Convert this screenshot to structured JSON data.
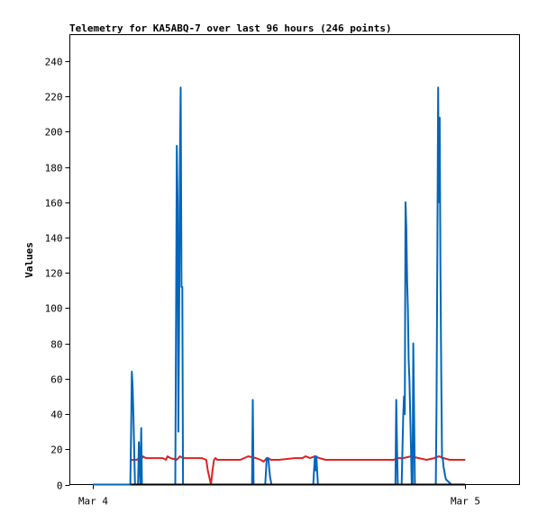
{
  "chart_data": {
    "type": "line",
    "title": "Telemetry for KA5ABQ-7 over last 96 hours (246 points)",
    "xlabel": "",
    "ylabel": "Values",
    "ylim": [
      0,
      255
    ],
    "yticks": [
      0,
      20,
      40,
      60,
      80,
      100,
      120,
      140,
      160,
      180,
      200,
      220,
      240
    ],
    "xlim": [
      -1.5,
      27.5
    ],
    "x_unit": "hours from Mar 4 00:00",
    "xticks": [
      {
        "x": 0,
        "label": "Mar 4"
      },
      {
        "x": 24,
        "label": "Mar 5"
      }
    ],
    "grid": false,
    "legend": "none",
    "series": [
      {
        "color": "#0066bb",
        "x": [
          0,
          2.4,
          2.45,
          2.5,
          2.55,
          2.6,
          2.65,
          2.7,
          2.75,
          2.8,
          2.85,
          2.9,
          2.95,
          3.05,
          3.1,
          3.15,
          3.2,
          3.25,
          3.3,
          5.3,
          5.35,
          5.4,
          5.45,
          5.5,
          5.55,
          5.6,
          5.65,
          5.7,
          5.75,
          5.8,
          5.85,
          5.9,
          5.95,
          10.25,
          10.3,
          10.35,
          11.1,
          11.2,
          11.3,
          11.4,
          11.5,
          14.2,
          14.25,
          14.3,
          14.35,
          14.4,
          14.45,
          14.5,
          19.5,
          19.55,
          19.6,
          19.65,
          19.9,
          20.0,
          20.05,
          20.1,
          20.15,
          20.2,
          20.25,
          20.3,
          20.35,
          20.4,
          20.45,
          20.5,
          20.55,
          20.6,
          20.65,
          20.7,
          20.75,
          20.8,
          20.85,
          20.9,
          20.95,
          21.0,
          22.1,
          22.15,
          22.2,
          22.25,
          22.3,
          22.35,
          22.4,
          22.45,
          22.5,
          22.55,
          22.6,
          22.65,
          22.7,
          22.75,
          23.1,
          23.5,
          24.0
        ],
        "values": [
          0,
          0,
          30,
          64,
          55,
          40,
          20,
          0,
          0,
          0,
          0,
          0,
          24,
          0,
          32,
          0,
          0,
          0,
          0,
          0,
          97,
          192,
          160,
          30,
          97,
          187,
          225,
          112,
          112,
          0,
          0,
          0,
          0,
          0,
          48,
          0,
          0,
          15,
          15,
          5,
          0,
          0,
          8,
          16,
          8,
          16,
          8,
          0,
          0,
          48,
          20,
          0,
          0,
          38,
          50,
          40,
          160,
          145,
          115,
          100,
          70,
          60,
          40,
          20,
          0,
          0,
          80,
          40,
          0,
          0,
          0,
          0,
          0,
          0,
          0,
          45,
          130,
          225,
          160,
          208,
          125,
          65,
          15,
          15,
          10,
          8,
          5,
          3,
          0,
          0,
          0
        ]
      },
      {
        "color": "#dd2222",
        "x": [
          2.4,
          2.8,
          3.0,
          3.1,
          3.2,
          3.4,
          4.5,
          4.7,
          4.8,
          5.0,
          5.4,
          5.6,
          5.8,
          6.2,
          7.0,
          7.3,
          7.4,
          7.6,
          7.7,
          7.8,
          7.9,
          8.0,
          9.5,
          10.0,
          10.5,
          10.8,
          11.0,
          11.2,
          11.5,
          12.0,
          13.0,
          13.5,
          13.7,
          14.0,
          14.3,
          14.6,
          15.0,
          16.0,
          19.4,
          19.6,
          20.0,
          20.5,
          21.0,
          21.5,
          22.0,
          22.3,
          22.6,
          23.0,
          24.0
        ],
        "values": [
          14,
          14,
          15,
          14,
          16,
          15,
          15,
          14,
          16,
          15,
          14,
          16,
          15,
          15,
          15,
          14,
          8,
          0,
          8,
          14,
          15,
          14,
          14,
          16,
          15,
          14,
          13,
          15,
          14,
          14,
          15,
          15,
          16,
          15,
          16,
          15,
          14,
          14,
          14,
          15,
          15,
          16,
          15,
          14,
          15,
          16,
          15,
          14,
          14
        ]
      },
      {
        "color": "#000000",
        "x": [
          2.4,
          24.0
        ],
        "values": [
          0,
          0
        ]
      }
    ]
  }
}
